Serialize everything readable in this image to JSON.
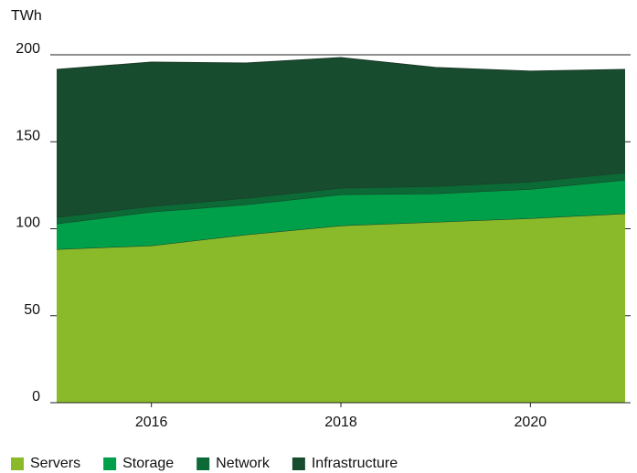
{
  "chart_data": {
    "type": "stacked_area",
    "y_label": "TWh",
    "x": [
      2015,
      2016,
      2017,
      2018,
      2019,
      2020,
      2021
    ],
    "xlim": [
      2015,
      2021
    ],
    "xticks": [
      2016,
      2018,
      2020
    ],
    "ylim": [
      0,
      200
    ],
    "yticks": [
      0,
      50,
      100,
      150,
      200
    ],
    "grid": true,
    "legend": "bottom",
    "series": [
      {
        "name": "Servers",
        "color": "#8aba2a",
        "values": [
          88.2,
          90.3,
          96.6,
          101.8,
          103.9,
          106.0,
          108.7
        ]
      },
      {
        "name": "Storage",
        "color": "#00a04a",
        "values": [
          14.7,
          19.4,
          17.3,
          17.9,
          16.3,
          16.8,
          19.4
        ]
      },
      {
        "name": "Network",
        "color": "#0b6a35",
        "values": [
          3.7,
          3.2,
          3.7,
          3.7,
          4.2,
          4.2,
          4.2
        ]
      },
      {
        "name": "Infrastructure",
        "color": "#174c2f",
        "values": [
          85.0,
          82.9,
          77.7,
          75.0,
          68.3,
          63.6,
          59.3
        ]
      }
    ]
  }
}
